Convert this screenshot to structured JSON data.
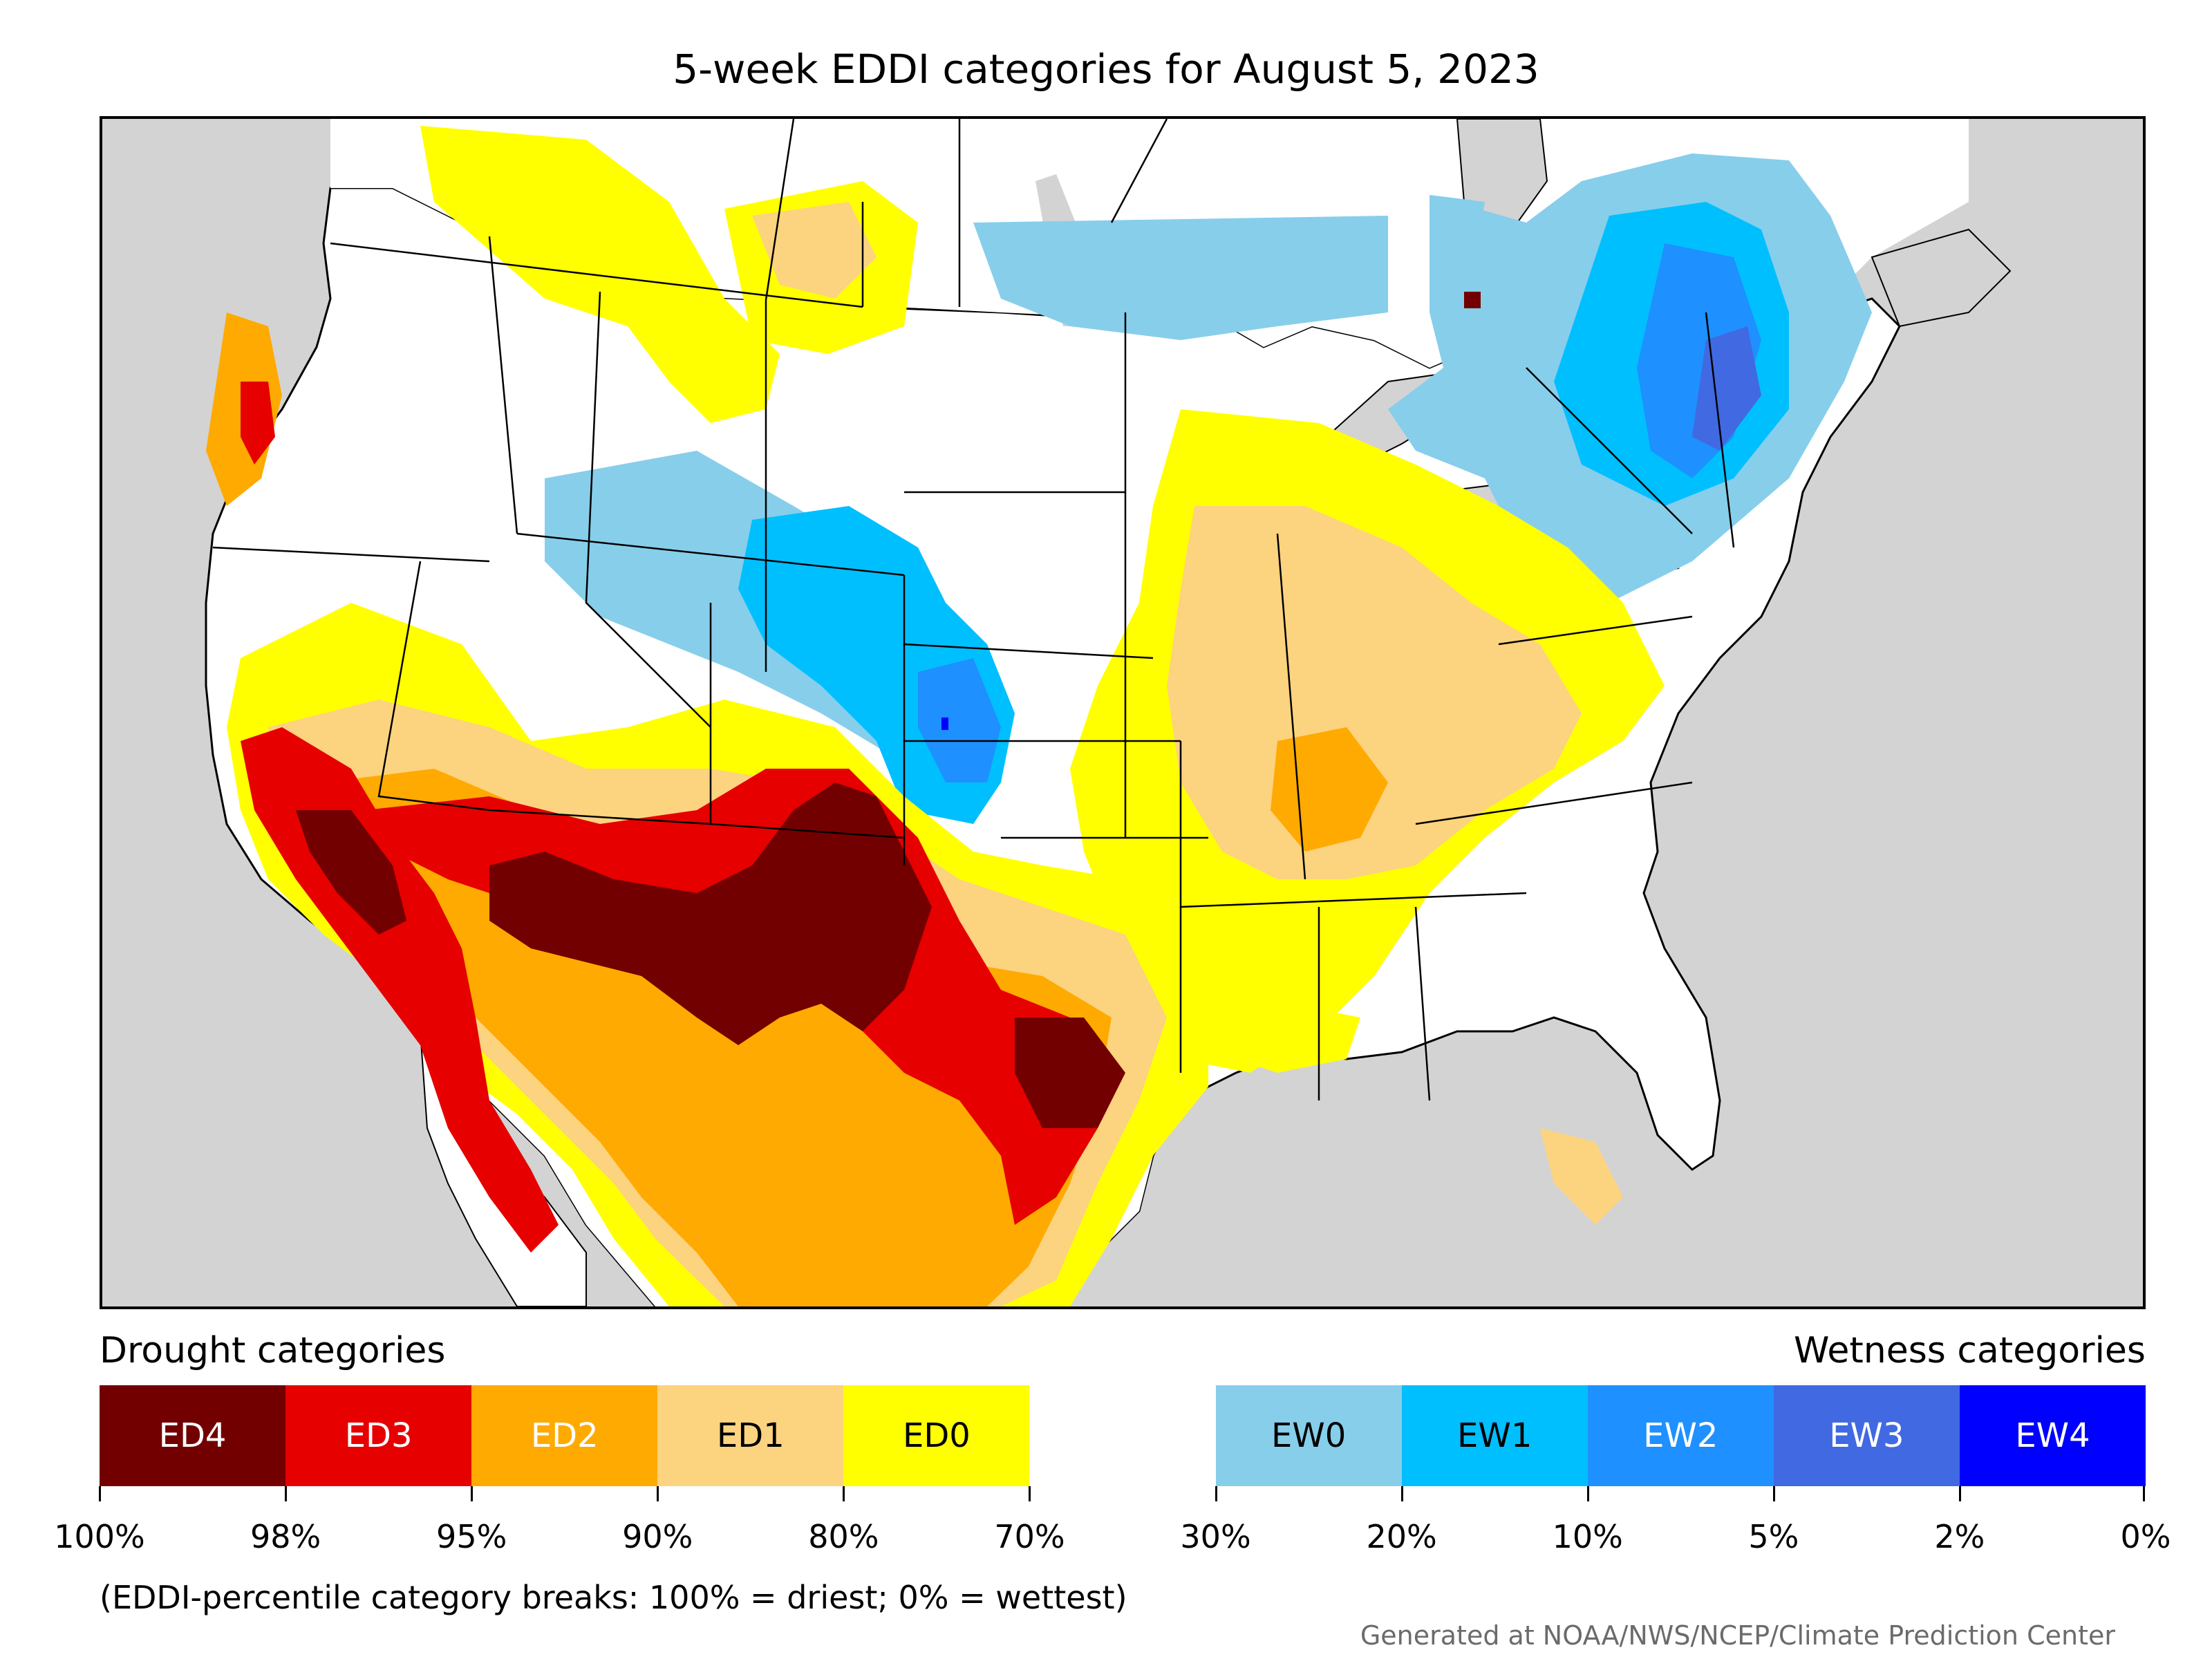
{
  "title": "5-week EDDI categories for August 5, 2023",
  "legend": {
    "drought_heading": "Drought categories",
    "wetness_heading": "Wetness categories",
    "categories": [
      {
        "label": "ED4",
        "color": "#730000",
        "text_color": "#ffffff"
      },
      {
        "label": "ED3",
        "color": "#e60000",
        "text_color": "#ffffff"
      },
      {
        "label": "ED2",
        "color": "#ffaa00",
        "text_color": "#ffffff"
      },
      {
        "label": "ED1",
        "color": "#fcd37f",
        "text_color": "#000000"
      },
      {
        "label": "ED0",
        "color": "#ffff00",
        "text_color": "#000000"
      },
      {
        "label": "",
        "color": "#ffffff",
        "text_color": "#000000"
      },
      {
        "label": "EW0",
        "color": "#87ceeb",
        "text_color": "#000000"
      },
      {
        "label": "EW1",
        "color": "#00bfff",
        "text_color": "#000000"
      },
      {
        "label": "EW2",
        "color": "#1e90ff",
        "text_color": "#ffffff"
      },
      {
        "label": "EW3",
        "color": "#4169e1",
        "text_color": "#ffffff"
      },
      {
        "label": "EW4",
        "color": "#0000ff",
        "text_color": "#ffffff"
      }
    ],
    "breaks": [
      "100%",
      "98%",
      "95%",
      "90%",
      "80%",
      "70%",
      "30%",
      "20%",
      "10%",
      "5%",
      "2%",
      "0%"
    ]
  },
  "note": "(EDDI-percentile category breaks: 100% = driest; 0% = wettest)",
  "credit": "Generated at NOAA/NWS/NCEP/Climate Prediction Center",
  "colors": {
    "background_land_outside": "#d3d3d3",
    "water": "#d3d3d3",
    "border": "#000000"
  }
}
